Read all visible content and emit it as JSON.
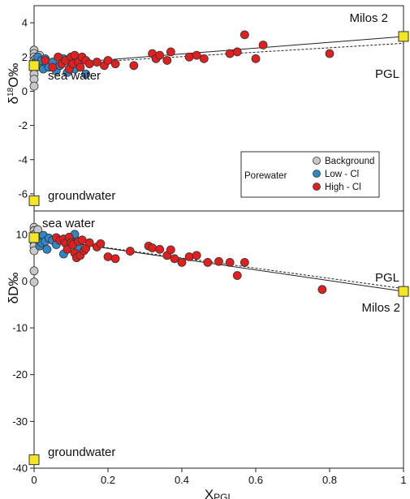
{
  "chart_data": [
    {
      "type": "scatter",
      "ylabel_main": "δ",
      "ylabel_sup": "18",
      "ylabel_rest": "O‰",
      "ylim": [
        -7,
        5
      ],
      "yticks": [
        "4",
        "2",
        "0",
        "-2",
        "-4",
        "-6"
      ],
      "ytick_values": [
        4,
        2,
        0,
        -2,
        -4,
        -6
      ],
      "endmembers": [
        {
          "name": "Milos 2",
          "x": 1,
          "y": 3.2
        },
        {
          "name": "sea water",
          "x": 0,
          "y": 1.5
        },
        {
          "name": "groundwater",
          "x": 0,
          "y": -6.4
        }
      ],
      "lines": [
        {
          "name": "mixing",
          "style": "solid",
          "from": [
            0,
            1.5
          ],
          "to": [
            1,
            3.2
          ]
        },
        {
          "name": "PGL",
          "style": "dashed",
          "from": [
            0,
            1.5
          ],
          "to": [
            1,
            2.8
          ]
        }
      ],
      "line_label": "PGL",
      "series": [
        {
          "name": "Background",
          "color": "#c8c8c8",
          "points": [
            [
              0,
              2.4
            ],
            [
              0,
              2.2
            ],
            [
              0,
              2.0
            ],
            [
              0,
              1.8
            ],
            [
              0,
              1.3
            ],
            [
              0,
              1.0
            ],
            [
              0,
              0.7
            ],
            [
              0,
              0.3
            ],
            [
              0.005,
              1.9
            ],
            [
              0.01,
              1.6
            ],
            [
              0.015,
              2.1
            ]
          ]
        },
        {
          "name": "Low - Cl",
          "color": "#2f86c9",
          "points": [
            [
              0.005,
              1.7
            ],
            [
              0.01,
              2.0
            ],
            [
              0.015,
              1.5
            ],
            [
              0.02,
              1.8
            ],
            [
              0.025,
              1.3
            ],
            [
              0.03,
              1.9
            ],
            [
              0.035,
              1.6
            ],
            [
              0.04,
              1.4
            ],
            [
              0.05,
              1.7
            ],
            [
              0.06,
              1.2
            ],
            [
              0.07,
              1.5
            ],
            [
              0.08,
              1.9
            ],
            [
              0.09,
              1.1
            ],
            [
              0.1,
              1.5
            ],
            [
              0.11,
              1.3
            ],
            [
              0.14,
              1.0
            ]
          ]
        },
        {
          "name": "High - Cl",
          "color": "#e02020",
          "points": [
            [
              0.03,
              1.8
            ],
            [
              0.05,
              1.4
            ],
            [
              0.065,
              2.0
            ],
            [
              0.075,
              1.6
            ],
            [
              0.085,
              1.8
            ],
            [
              0.095,
              1.3
            ],
            [
              0.1,
              2.0
            ],
            [
              0.105,
              1.6
            ],
            [
              0.11,
              2.1
            ],
            [
              0.12,
              1.7
            ],
            [
              0.125,
              1.4
            ],
            [
              0.13,
              2.0
            ],
            [
              0.14,
              1.8
            ],
            [
              0.15,
              1.6
            ],
            [
              0.17,
              1.7
            ],
            [
              0.19,
              1.5
            ],
            [
              0.2,
              1.8
            ],
            [
              0.22,
              1.6
            ],
            [
              0.27,
              1.5
            ],
            [
              0.32,
              2.2
            ],
            [
              0.33,
              1.9
            ],
            [
              0.34,
              2.1
            ],
            [
              0.36,
              1.8
            ],
            [
              0.37,
              2.3
            ],
            [
              0.42,
              2.0
            ],
            [
              0.44,
              2.1
            ],
            [
              0.46,
              1.9
            ],
            [
              0.53,
              2.2
            ],
            [
              0.55,
              2.3
            ],
            [
              0.57,
              3.3
            ],
            [
              0.6,
              1.9
            ],
            [
              0.62,
              2.7
            ],
            [
              0.8,
              2.2
            ]
          ]
        }
      ]
    },
    {
      "type": "scatter",
      "ylabel_main": "δD‰",
      "xlabel_main": "X",
      "xlabel_sub": "PGL",
      "xlim": [
        0,
        1
      ],
      "ylim": [
        -40,
        15
      ],
      "yticks": [
        "10",
        "0",
        "-10",
        "-20",
        "-30",
        "-40"
      ],
      "ytick_values": [
        10,
        0,
        -10,
        -20,
        -30,
        -40
      ],
      "xticks": [
        "0",
        "0.2",
        "0.4",
        "0.6",
        "0.8",
        "1"
      ],
      "xtick_values": [
        0,
        0.2,
        0.4,
        0.6,
        0.8,
        1
      ],
      "endmembers": [
        {
          "name": "sea water",
          "x": 0,
          "y": 9.3
        },
        {
          "name": "Milos 2",
          "x": 1,
          "y": -2.2
        },
        {
          "name": "groundwater",
          "x": 0,
          "y": -38.2
        }
      ],
      "lines": [
        {
          "name": "mixing",
          "style": "solid",
          "from": [
            0,
            9.3
          ],
          "to": [
            1,
            -2.2
          ]
        },
        {
          "name": "PGL",
          "style": "dashed",
          "from": [
            0,
            9.3
          ],
          "to": [
            1,
            -1.6
          ]
        }
      ],
      "line_label": "PGL",
      "series": [
        {
          "name": "Background",
          "color": "#c8c8c8",
          "points": [
            [
              0,
              11.5
            ],
            [
              0,
              10.8
            ],
            [
              0,
              9.9
            ],
            [
              0,
              9.0
            ],
            [
              0,
              8.3
            ],
            [
              0,
              7.5
            ],
            [
              0,
              6.5
            ],
            [
              0,
              2.2
            ],
            [
              0,
              -0.2
            ],
            [
              0.005,
              10.2
            ],
            [
              0.01,
              8.8
            ],
            [
              0.015,
              9.6
            ],
            [
              0.01,
              11.0
            ],
            [
              0.02,
              9.2
            ],
            [
              0.03,
              9.0
            ]
          ]
        },
        {
          "name": "Low - Cl",
          "color": "#2f86c9",
          "points": [
            [
              0.01,
              9.5
            ],
            [
              0.015,
              7.5
            ],
            [
              0.02,
              8.2
            ],
            [
              0.025,
              9.8
            ],
            [
              0.03,
              8.5
            ],
            [
              0.035,
              6.8
            ],
            [
              0.04,
              9.2
            ],
            [
              0.05,
              8.7
            ],
            [
              0.06,
              7.8
            ],
            [
              0.08,
              5.8
            ],
            [
              0.11,
              10.0
            ],
            [
              0.1,
              8.5
            ],
            [
              0.12,
              7.0
            ]
          ]
        },
        {
          "name": "High - Cl",
          "color": "#e02020",
          "points": [
            [
              0.06,
              9.3
            ],
            [
              0.07,
              8.7
            ],
            [
              0.08,
              9.0
            ],
            [
              0.085,
              8.1
            ],
            [
              0.09,
              6.8
            ],
            [
              0.095,
              9.4
            ],
            [
              0.1,
              8.2
            ],
            [
              0.105,
              7.8
            ],
            [
              0.11,
              6.0
            ],
            [
              0.115,
              5.0
            ],
            [
              0.12,
              8.5
            ],
            [
              0.125,
              5.5
            ],
            [
              0.13,
              8.8
            ],
            [
              0.135,
              6.5
            ],
            [
              0.14,
              7.0
            ],
            [
              0.15,
              8.2
            ],
            [
              0.17,
              7.3
            ],
            [
              0.18,
              8.0
            ],
            [
              0.2,
              5.2
            ],
            [
              0.22,
              4.8
            ],
            [
              0.26,
              6.4
            ],
            [
              0.31,
              7.5
            ],
            [
              0.32,
              7.1
            ],
            [
              0.34,
              6.8
            ],
            [
              0.36,
              5.5
            ],
            [
              0.37,
              6.7
            ],
            [
              0.38,
              4.8
            ],
            [
              0.4,
              4.0
            ],
            [
              0.42,
              5.2
            ],
            [
              0.44,
              5.5
            ],
            [
              0.47,
              4.0
            ],
            [
              0.5,
              4.2
            ],
            [
              0.53,
              4.0
            ],
            [
              0.55,
              1.2
            ],
            [
              0.57,
              4.0
            ],
            [
              0.78,
              -1.8
            ]
          ]
        }
      ]
    }
  ],
  "legend": {
    "group_label": "Porewater",
    "items": [
      {
        "label": "Background",
        "color": "#c8c8c8"
      },
      {
        "label": "Low - Cl",
        "color": "#2f86c9"
      },
      {
        "label": "High - Cl",
        "color": "#e02020"
      }
    ]
  },
  "endmember_color": "#f5e623"
}
